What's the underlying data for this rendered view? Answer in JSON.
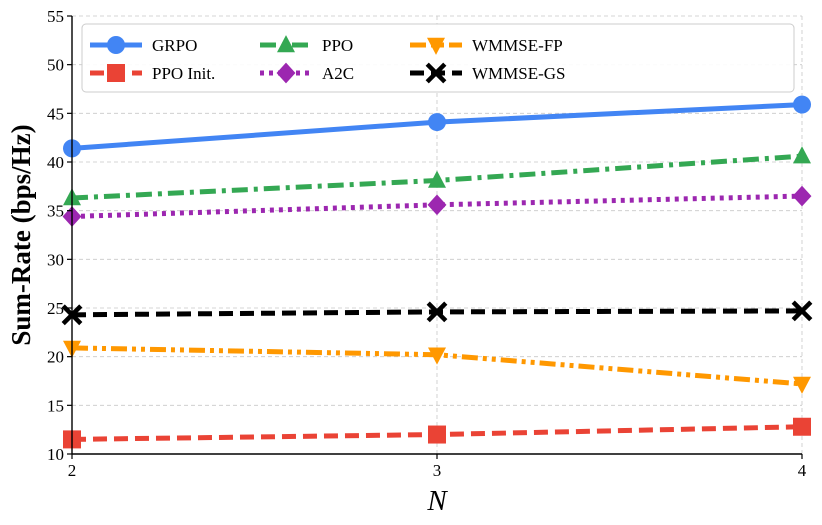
{
  "chart_data": {
    "type": "line",
    "title": "",
    "xlabel": "N",
    "ylabel": "Sum-Rate (bps/Hz)",
    "x": [
      2,
      3,
      4
    ],
    "xlim": [
      2,
      4
    ],
    "ylim": [
      10,
      55
    ],
    "xticks": [
      "2",
      "3",
      "4"
    ],
    "yticks": [
      "10",
      "15",
      "20",
      "25",
      "30",
      "35",
      "40",
      "45",
      "50",
      "55"
    ],
    "grid": true,
    "legend_position": "top",
    "series": [
      {
        "name": "GRPO",
        "values": [
          41.4,
          44.1,
          45.9
        ],
        "color": "#4285F4",
        "marker": "circle",
        "dash": "solid"
      },
      {
        "name": "PPO Init.",
        "values": [
          11.5,
          12.0,
          12.8
        ],
        "color": "#EA4335",
        "marker": "square",
        "dash": "dashed"
      },
      {
        "name": "PPO",
        "values": [
          36.3,
          38.1,
          40.6
        ],
        "color": "#34A853",
        "marker": "triangle-up",
        "dash": "dashdot"
      },
      {
        "name": "A2C",
        "values": [
          34.4,
          35.6,
          36.5
        ],
        "color": "#9C27B0",
        "marker": "diamond",
        "dash": "dotted"
      },
      {
        "name": "WMMSE-FP",
        "values": [
          20.9,
          20.2,
          17.2
        ],
        "color": "#FF9800",
        "marker": "triangle-down",
        "dash": "dashdotdot"
      },
      {
        "name": "WMMSE-GS",
        "values": [
          24.3,
          24.6,
          24.7
        ],
        "color": "#000000",
        "marker": "x",
        "dash": "dashed"
      }
    ]
  }
}
